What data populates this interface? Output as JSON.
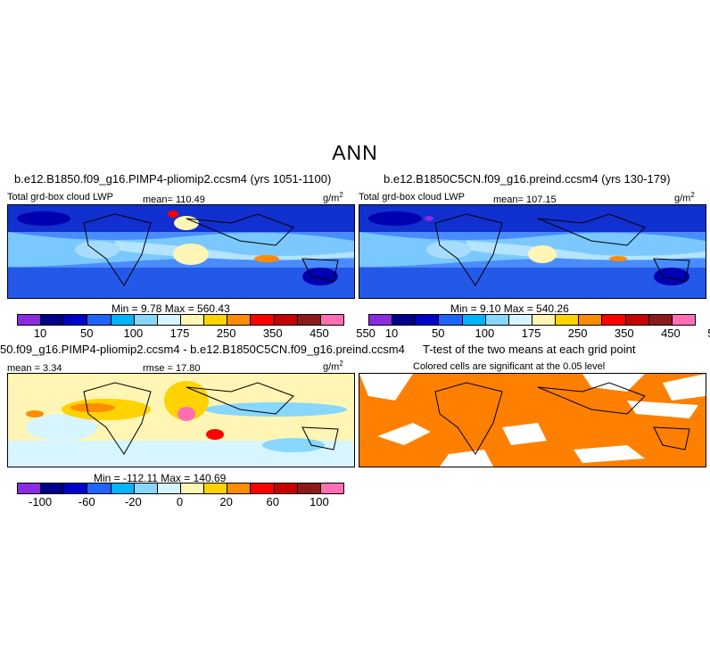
{
  "title": "ANN",
  "panels": {
    "p1": {
      "title": "b.e12.B1850.f09_g16.PIMP4-pliomip2.ccsm4 (yrs 1051-1100)",
      "varname": "Total grd-box cloud LWP",
      "mean": "mean= 110.49",
      "units": "g/m",
      "units_exp": "2",
      "minmax": "Min =    9.78  Max = 560.43"
    },
    "p2": {
      "title": "b.e12.B1850C5CN.f09_g16.preind.ccsm4 (yrs 130-179)",
      "varname": "Total grd-box cloud LWP",
      "mean": "mean= 107.15",
      "units": "g/m",
      "units_exp": "2",
      "minmax": "Min =    9.10  Max = 540.26"
    },
    "p3": {
      "title": "50.f09_g16.PIMP4-pliomip2.ccsm4 - b.e12.B1850C5CN.f09_g16.preind.ccsm4",
      "mean": "mean =    3.34",
      "rmse": "rmse =  17.80",
      "units": "g/m",
      "units_exp": "2",
      "minmax": "Min = -112.11  Max = 140.69"
    },
    "p4": {
      "title": "T-test of the two means at each grid point",
      "subtitle": "Colored cells are significant at the 0.05 level"
    }
  },
  "colorbars": {
    "abs": {
      "colors": [
        "#8a2be2",
        "#00008b",
        "#0000cd",
        "#1e64ff",
        "#00b4ff",
        "#87d7ff",
        "#d7f5ff",
        "#fff5b4",
        "#ffd200",
        "#ff8c00",
        "#ff0000",
        "#c80000",
        "#8b1a1a",
        "#ff6eb4"
      ],
      "labels": [
        "10",
        "50",
        "100",
        "175",
        "250",
        "350",
        "450",
        "550"
      ]
    },
    "diff": {
      "colors": [
        "#8a2be2",
        "#00008b",
        "#0000cd",
        "#1e64ff",
        "#00b4ff",
        "#87d7ff",
        "#d7f5ff",
        "#fff5b4",
        "#ffd200",
        "#ff8c00",
        "#ff0000",
        "#c80000",
        "#8b1a1a",
        "#ff6eb4"
      ],
      "labels": [
        "-100",
        "-60",
        "-20",
        "0",
        "20",
        "60",
        "100"
      ]
    }
  },
  "chart_data": [
    {
      "type": "heatmap",
      "title": "b.e12.B1850.f09_g16.PIMP4-pliomip2.ccsm4 (yrs 1051-1100)",
      "variable": "Total grd-box cloud LWP",
      "units": "g/m2",
      "mean": 110.49,
      "min": 9.78,
      "max": 560.43,
      "levels": [
        10,
        50,
        100,
        175,
        250,
        350,
        450,
        550
      ]
    },
    {
      "type": "heatmap",
      "title": "b.e12.B1850C5CN.f09_g16.preind.ccsm4 (yrs 130-179)",
      "variable": "Total grd-box cloud LWP",
      "units": "g/m2",
      "mean": 107.15,
      "min": 9.1,
      "max": 540.26,
      "levels": [
        10,
        50,
        100,
        175,
        250,
        350,
        450,
        550
      ]
    },
    {
      "type": "heatmap",
      "title": "50.f09_g16.PIMP4-pliomip2.ccsm4 - b.e12.B1850C5CN.f09_g16.preind.ccsm4",
      "units": "g/m2",
      "mean": 3.34,
      "rmse": 17.8,
      "min": -112.11,
      "max": 140.69,
      "levels": [
        -100,
        -60,
        -20,
        0,
        20,
        60,
        100
      ]
    },
    {
      "type": "heatmap",
      "title": "T-test of the two means at each grid point",
      "subtitle": "Colored cells are significant at the 0.05 level",
      "significance_level": 0.05
    }
  ]
}
